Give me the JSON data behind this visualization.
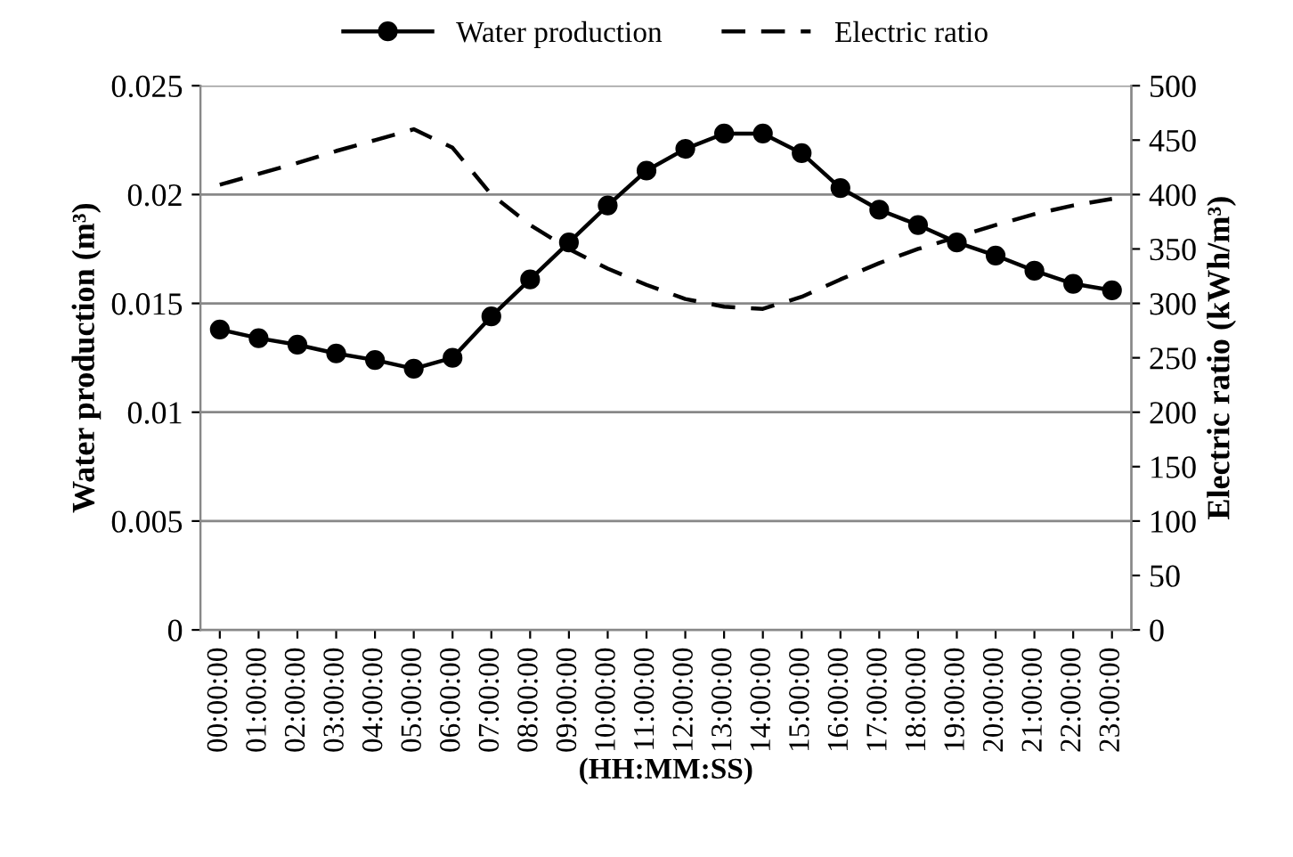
{
  "chart_data": {
    "type": "line",
    "categories": [
      "00:00:00",
      "01:00:00",
      "02:00:00",
      "03:00:00",
      "04:00:00",
      "05:00:00",
      "06:00:00",
      "07:00:00",
      "08:00:00",
      "09:00:00",
      "10:00:00",
      "11:00:00",
      "12:00:00",
      "13:00:00",
      "14:00:00",
      "15:00:00",
      "16:00:00",
      "17:00:00",
      "18:00:00",
      "19:00:00",
      "20:00:00",
      "21:00:00",
      "22:00:00",
      "23:00:00"
    ],
    "series": [
      {
        "name": "Water production",
        "color": "#000000",
        "marker": "circle",
        "line_style": "solid",
        "values": [
          0.0138,
          0.0134,
          0.0131,
          0.0127,
          0.0124,
          0.012,
          0.0125,
          0.0144,
          0.0161,
          0.0178,
          0.0195,
          0.0211,
          0.0221,
          0.0228,
          0.0228,
          0.0219,
          0.0203,
          0.0193,
          0.0186,
          0.0178,
          0.0172,
          0.0165,
          0.0159,
          0.0156
        ]
      },
      {
        "name": "Electric ratio",
        "color": "#000000",
        "axis": "y2",
        "marker": "none",
        "line_style": "dashed",
        "values": [
          409,
          419,
          429,
          440,
          450,
          460,
          443,
          400,
          372,
          350,
          332,
          317,
          304,
          297,
          295,
          306,
          322,
          337,
          350,
          361,
          372,
          382,
          390,
          396
        ]
      }
    ],
    "xlabel": "(HH:MM:SS)",
    "ylabel": "Water production (m³)",
    "y2label": "Electric ratio (kWh/m³)",
    "ylim": [
      0,
      0.025
    ],
    "yticks": [
      0,
      0.005,
      0.01,
      0.015,
      0.02,
      0.025
    ],
    "y2lim": [
      0,
      500
    ],
    "y2ticks": [
      0,
      50,
      100,
      150,
      200,
      250,
      300,
      350,
      400,
      450,
      500
    ],
    "grid": "y",
    "legend": "top"
  }
}
